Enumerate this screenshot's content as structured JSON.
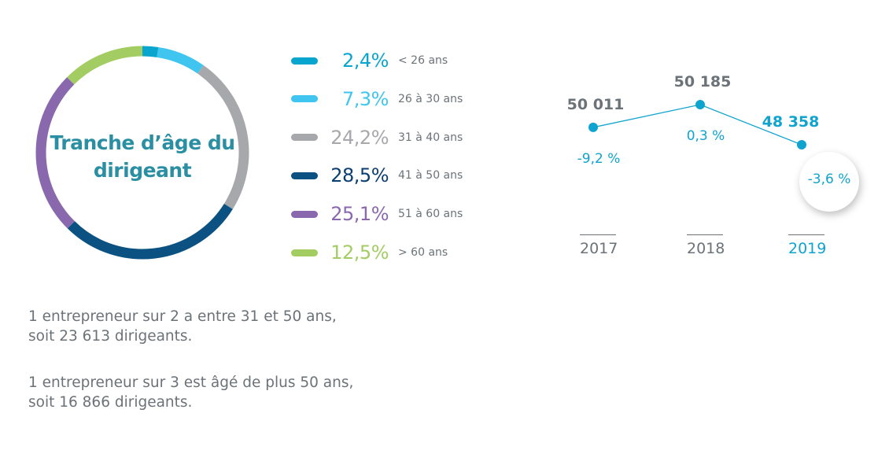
{
  "chart_data": [
    {
      "type": "pie",
      "title": "Tranche d’âge du dirigeant",
      "slices": [
        {
          "label": "< 26 ans",
          "value": 2.4,
          "display": "2,4%",
          "color": "#08a5cf"
        },
        {
          "label": "26 à 30 ans",
          "value": 7.3,
          "display": "7,3%",
          "color": "#3fc5f0"
        },
        {
          "label": "31 à 40 ans",
          "value": 24.2,
          "display": "24,2%",
          "color": "#a7a8ac"
        },
        {
          "label": "41 à 50 ans",
          "value": 28.5,
          "display": "28,5%",
          "color": "#0b5282"
        },
        {
          "label": "51 à 60 ans",
          "value": 25.1,
          "display": "25,1%",
          "color": "#8a68ad"
        },
        {
          "label": "> 60 ans",
          "value": 12.5,
          "display": "12,5%",
          "color": "#a3cd63"
        }
      ]
    },
    {
      "type": "line",
      "categories": [
        "2017",
        "2018",
        "2019"
      ],
      "values": [
        50011,
        50185,
        48358
      ],
      "value_labels": [
        "50 011",
        "50 185",
        "48 358"
      ],
      "change_labels": [
        "-9,2 %",
        "0,3 %",
        "-3,6 %"
      ],
      "line_color": "#0fa3cf",
      "highlight_color": "#0fa3cf",
      "text_color": "#6b7378"
    }
  ],
  "notes": [
    [
      "1 entrepreneur sur 2 a entre 31 et 50 ans,",
      "soit 23 613 dirigeants."
    ],
    [
      "1 entrepreneur sur 3 est âgé de plus 50 ans,",
      "soit 16 866 dirigeants."
    ]
  ]
}
